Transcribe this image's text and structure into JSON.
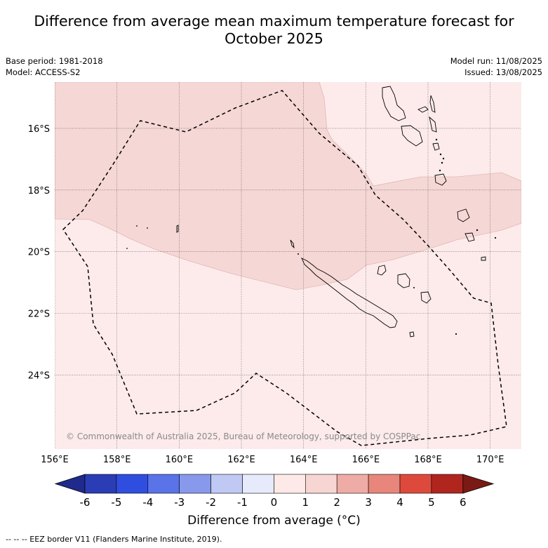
{
  "title_line1": "Difference from average mean maximum temperature forecast for",
  "title_line2": "October 2025",
  "base_period": "Base period: 1981-2018",
  "model": "Model: ACCESS-S2",
  "model_run": "Model run: 11/08/2025",
  "issued": "Issued: 13/08/2025",
  "copyright": "© Commonwealth of Australia 2025, Bureau of Meteorology, supported by COSPPac",
  "map": {
    "lon_labels": [
      "156°E",
      "158°E",
      "160°E",
      "162°E",
      "164°E",
      "166°E",
      "168°E",
      "170°E"
    ],
    "lon_values": [
      156,
      158,
      160,
      162,
      164,
      166,
      168,
      170
    ],
    "lat_labels": [
      "16°S",
      "18°S",
      "20°S",
      "22°S",
      "24°S"
    ],
    "lat_values": [
      -16,
      -18,
      -20,
      -22,
      -24
    ],
    "lon_range": [
      156,
      171
    ],
    "lat_range": [
      -26.4,
      -14.5
    ]
  },
  "colorbar": {
    "title": "Difference from average (°C)",
    "tick_labels": [
      "-6",
      "-5",
      "-4",
      "-3",
      "-2",
      "-1",
      "0",
      "1",
      "2",
      "3",
      "4",
      "5",
      "6"
    ],
    "colors": [
      "#1f2a8c",
      "#2a3db5",
      "#2f4ee0",
      "#5a73e8",
      "#8899ec",
      "#c0c8f4",
      "#e6eafb",
      "#fde9e7",
      "#f6d5d3",
      "#efaba6",
      "#e8867c",
      "#dd4a3c",
      "#b0261f",
      "#7a1a14"
    ],
    "map_colors": {
      "zero_to_one": "#fcebea",
      "one_to_two": "#f5d7d6"
    }
  },
  "footnote": "--  --  -- EEZ border V11 (Flanders Marine Institute, 2019)."
}
